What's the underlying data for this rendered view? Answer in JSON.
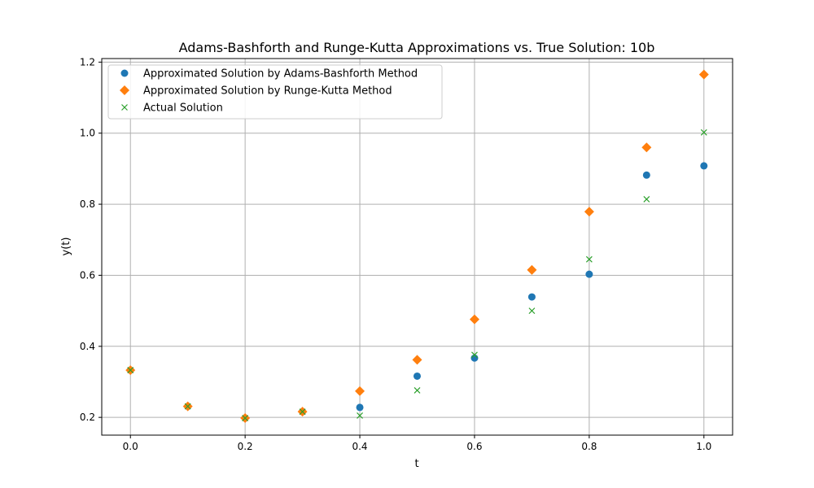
{
  "chart_data": {
    "type": "scatter",
    "title": "Adams-Bashforth and Runge-Kutta Approximations vs. True Solution: 10b",
    "xlabel": "t",
    "ylabel": "y(t)",
    "xlim": [
      -0.05,
      1.05
    ],
    "ylim": [
      0.15,
      1.21
    ],
    "xticks": [
      0.0,
      0.2,
      0.4,
      0.6,
      0.8,
      1.0
    ],
    "xtick_labels": [
      "0.0",
      "0.2",
      "0.4",
      "0.6",
      "0.8",
      "1.0"
    ],
    "yticks": [
      0.2,
      0.4,
      0.6,
      0.8,
      1.0,
      1.2
    ],
    "ytick_labels": [
      "0.2",
      "0.4",
      "0.6",
      "0.8",
      "1.0",
      "1.2"
    ],
    "grid": true,
    "legend_position": "top-left",
    "x": [
      0.0,
      0.1,
      0.2,
      0.3,
      0.4,
      0.5,
      0.6,
      0.7,
      0.8,
      0.9,
      1.0
    ],
    "series": [
      {
        "name": "Approximated Solution by Adams-Bashforth Method",
        "marker": "circle",
        "color": "#1f77b4",
        "values": [
          0.333,
          0.231,
          0.198,
          0.216,
          0.228,
          0.316,
          0.367,
          0.539,
          0.603,
          0.882,
          0.908
        ]
      },
      {
        "name": "Approximated Solution by Runge-Kutta Method",
        "marker": "diamond",
        "color": "#ff7f0e",
        "values": [
          0.333,
          0.231,
          0.198,
          0.216,
          0.274,
          0.362,
          0.476,
          0.615,
          0.779,
          0.96,
          1.165
        ]
      },
      {
        "name": "Actual Solution",
        "marker": "x",
        "color": "#2ca02c",
        "values": [
          0.333,
          0.231,
          0.198,
          0.216,
          0.205,
          0.276,
          0.376,
          0.5,
          0.645,
          0.814,
          1.002
        ]
      }
    ]
  }
}
